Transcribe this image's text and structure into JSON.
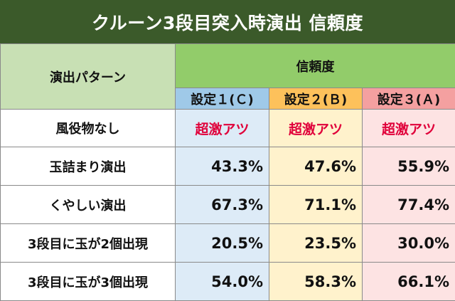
{
  "title": "クルーン3段目突入時演出 信頼度",
  "header": {
    "pattern_label": "演出パターン",
    "trust_label": "信頼度",
    "settings": [
      "設定１(Ｃ)",
      "設定２(Ｂ)",
      "設定３(Ａ)"
    ]
  },
  "rows": [
    {
      "label": "風役物なし",
      "values": [
        "超激アツ",
        "超激アツ",
        "超激アツ"
      ]
    },
    {
      "label": "玉詰まり演出",
      "values": [
        "43.3%",
        "47.6%",
        "55.9%"
      ]
    },
    {
      "label": "くやしい演出",
      "values": [
        "67.3%",
        "71.1%",
        "77.4%"
      ]
    },
    {
      "label": "3段目に玉が2個出現",
      "values": [
        "20.5%",
        "23.5%",
        "30.0%"
      ]
    },
    {
      "label": "3段目に玉が3個出現",
      "values": [
        "54.0%",
        "58.3%",
        "66.1%"
      ]
    }
  ],
  "colors": {
    "title_bg": "#3b5a2a",
    "setting_c": "#9fc9e8",
    "setting_b": "#fdc15b",
    "setting_a": "#f4a0a0",
    "hot_text": "#e0003a"
  }
}
